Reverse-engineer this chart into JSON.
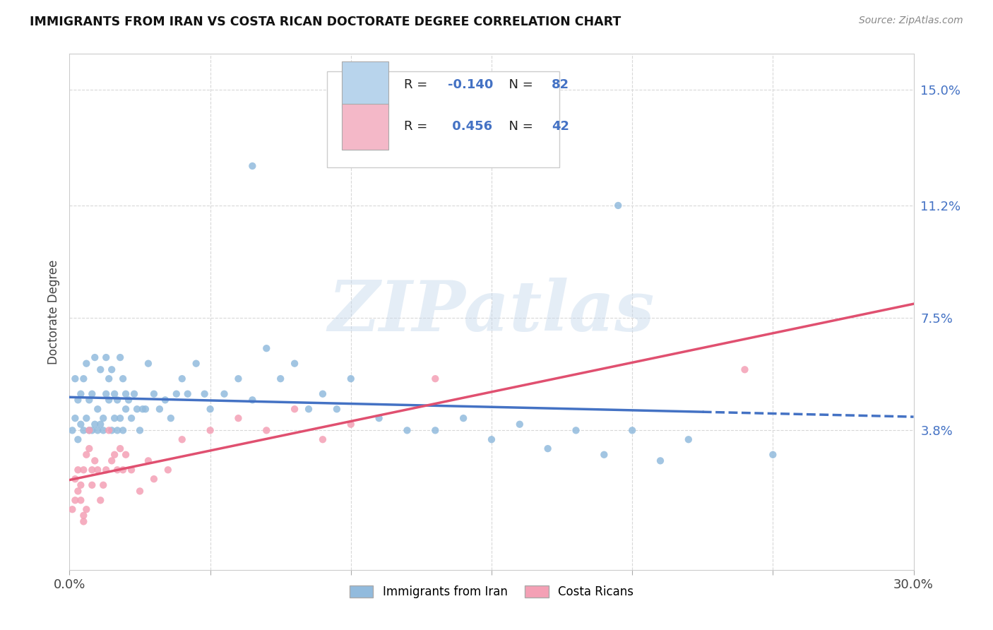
{
  "title": "IMMIGRANTS FROM IRAN VS COSTA RICAN DOCTORATE DEGREE CORRELATION CHART",
  "source": "Source: ZipAtlas.com",
  "ylabel": "Doctorate Degree",
  "xlim": [
    0.0,
    0.3
  ],
  "ylim": [
    -0.008,
    0.162
  ],
  "right_ytick_labels": [
    "15.0%",
    "11.2%",
    "7.5%",
    "3.8%"
  ],
  "right_ytick_positions": [
    0.15,
    0.112,
    0.075,
    0.038
  ],
  "legend_bottom_labels": [
    "Immigrants from Iran",
    "Costa Ricans"
  ],
  "iran_color": "#92bbdd",
  "costa_rica_color": "#f4a0b5",
  "iran_trend_color": "#4472c4",
  "costa_rica_trend_color": "#e05070",
  "iran_R": -0.14,
  "iran_N": 82,
  "costa_rica_R": 0.456,
  "costa_rica_N": 42,
  "watermark": "ZIPatlas",
  "background_color": "#ffffff",
  "grid_color": "#d8d8d8",
  "legend_iran_box_color": "#b8d4ec",
  "legend_costa_box_color": "#f4b8c8",
  "iran_x": [
    0.001,
    0.002,
    0.002,
    0.003,
    0.003,
    0.004,
    0.004,
    0.005,
    0.005,
    0.006,
    0.006,
    0.007,
    0.007,
    0.008,
    0.008,
    0.009,
    0.009,
    0.01,
    0.01,
    0.011,
    0.011,
    0.012,
    0.012,
    0.013,
    0.013,
    0.014,
    0.014,
    0.015,
    0.015,
    0.016,
    0.016,
    0.017,
    0.017,
    0.018,
    0.018,
    0.019,
    0.019,
    0.02,
    0.02,
    0.021,
    0.022,
    0.023,
    0.024,
    0.025,
    0.026,
    0.027,
    0.028,
    0.03,
    0.032,
    0.034,
    0.036,
    0.038,
    0.04,
    0.042,
    0.045,
    0.048,
    0.05,
    0.055,
    0.06,
    0.065,
    0.07,
    0.075,
    0.08,
    0.085,
    0.09,
    0.095,
    0.1,
    0.11,
    0.12,
    0.13,
    0.14,
    0.15,
    0.16,
    0.17,
    0.18,
    0.19,
    0.2,
    0.21,
    0.22,
    0.25,
    0.065,
    0.195
  ],
  "iran_y": [
    0.038,
    0.042,
    0.055,
    0.035,
    0.048,
    0.05,
    0.04,
    0.055,
    0.038,
    0.06,
    0.042,
    0.048,
    0.038,
    0.038,
    0.05,
    0.04,
    0.062,
    0.045,
    0.038,
    0.04,
    0.058,
    0.042,
    0.038,
    0.05,
    0.062,
    0.055,
    0.048,
    0.038,
    0.058,
    0.042,
    0.05,
    0.048,
    0.038,
    0.062,
    0.042,
    0.055,
    0.038,
    0.05,
    0.045,
    0.048,
    0.042,
    0.05,
    0.045,
    0.038,
    0.045,
    0.045,
    0.06,
    0.05,
    0.045,
    0.048,
    0.042,
    0.05,
    0.055,
    0.05,
    0.06,
    0.05,
    0.045,
    0.05,
    0.055,
    0.048,
    0.065,
    0.055,
    0.06,
    0.045,
    0.05,
    0.045,
    0.055,
    0.042,
    0.038,
    0.038,
    0.042,
    0.035,
    0.04,
    0.032,
    0.038,
    0.03,
    0.038,
    0.028,
    0.035,
    0.03,
    0.125,
    0.112
  ],
  "costa_x": [
    0.001,
    0.002,
    0.002,
    0.003,
    0.003,
    0.004,
    0.004,
    0.005,
    0.005,
    0.006,
    0.006,
    0.007,
    0.007,
    0.008,
    0.008,
    0.009,
    0.01,
    0.011,
    0.012,
    0.013,
    0.014,
    0.015,
    0.016,
    0.017,
    0.018,
    0.019,
    0.02,
    0.022,
    0.025,
    0.028,
    0.03,
    0.035,
    0.04,
    0.05,
    0.06,
    0.07,
    0.08,
    0.09,
    0.1,
    0.13,
    0.24,
    0.005
  ],
  "costa_y": [
    0.012,
    0.015,
    0.022,
    0.018,
    0.025,
    0.02,
    0.015,
    0.01,
    0.025,
    0.012,
    0.03,
    0.038,
    0.032,
    0.025,
    0.02,
    0.028,
    0.025,
    0.015,
    0.02,
    0.025,
    0.038,
    0.028,
    0.03,
    0.025,
    0.032,
    0.025,
    0.03,
    0.025,
    0.018,
    0.028,
    0.022,
    0.025,
    0.035,
    0.038,
    0.042,
    0.038,
    0.045,
    0.035,
    0.04,
    0.055,
    0.058,
    0.008
  ]
}
